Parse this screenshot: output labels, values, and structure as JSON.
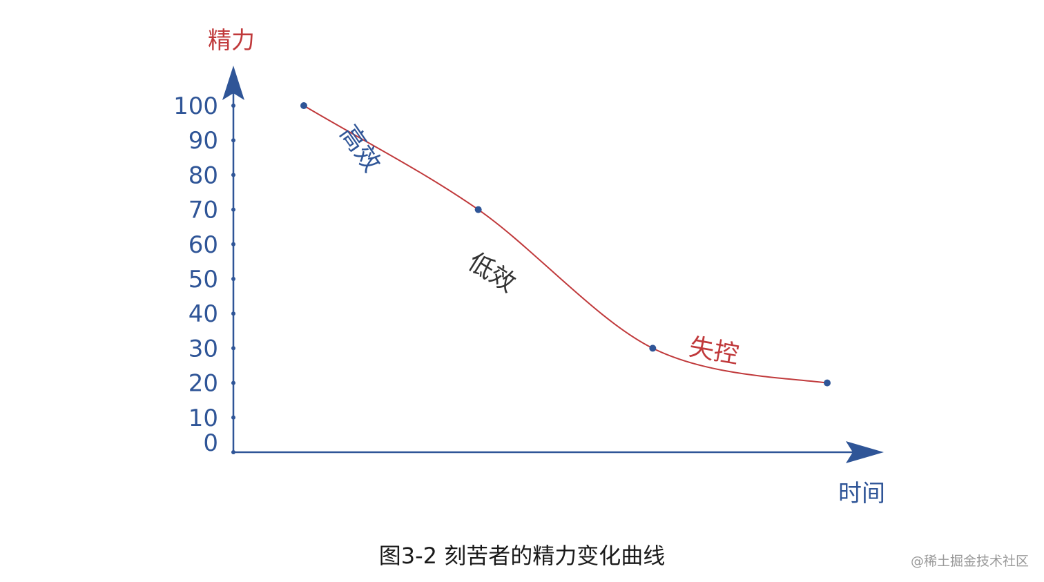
{
  "chart_data": {
    "type": "line",
    "title": "",
    "xlabel": "时间",
    "ylabel": "精力",
    "yticks": [
      "0",
      "10",
      "20",
      "30",
      "40",
      "50",
      "60",
      "70",
      "80",
      "90",
      "100"
    ],
    "ylim": [
      0,
      100
    ],
    "grid": false,
    "points": [
      {
        "x": 1,
        "y": 100
      },
      {
        "x": 2,
        "y": 70
      },
      {
        "x": 3,
        "y": 30
      },
      {
        "x": 4,
        "y": 20
      }
    ],
    "segment_labels": [
      {
        "text": "高效",
        "color": "#2f5597"
      },
      {
        "text": "低效",
        "color": "#333333"
      },
      {
        "text": "失控",
        "color": "#c0393b"
      }
    ],
    "colors": {
      "axis": "#2f5597",
      "curve": "#c0393b",
      "points": "#2f5597",
      "ylabel": "#c0393b",
      "xlabel": "#2f5597"
    }
  },
  "caption": "图3-2 刻苦者的精力变化曲线",
  "watermark": "@稀土掘金技术社区"
}
